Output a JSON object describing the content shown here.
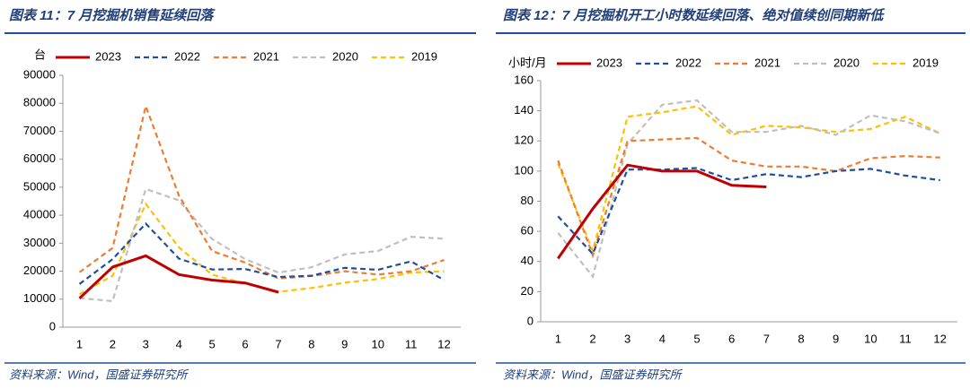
{
  "chart_data": [
    {
      "type": "line",
      "title": "图表 11：7 月挖掘机销售延续回落",
      "y_label": "台",
      "source": "资料来源：Wind，国盛证券研究所",
      "categories": [
        "1",
        "2",
        "3",
        "4",
        "5",
        "6",
        "7",
        "8",
        "9",
        "10",
        "11",
        "12"
      ],
      "ylim": [
        0,
        90000
      ],
      "yticks": [
        0,
        10000,
        20000,
        30000,
        40000,
        50000,
        60000,
        70000,
        80000,
        90000
      ],
      "series": [
        {
          "name": "2023",
          "color": "#c00000",
          "values": [
            10300,
            21500,
            25500,
            18800,
            16800,
            15800,
            12500,
            null,
            null,
            null,
            null,
            null
          ]
        },
        {
          "name": "2022",
          "color": "#1f4e9c",
          "values": [
            15400,
            24300,
            37000,
            24500,
            20600,
            20800,
            17900,
            18400,
            21200,
            20500,
            23500,
            16800
          ]
        },
        {
          "name": "2021",
          "color": "#ed7d31",
          "values": [
            19600,
            28300,
            79000,
            47000,
            27200,
            23100,
            17400,
            18300,
            20000,
            18800,
            20000,
            24000
          ]
        },
        {
          "name": "2020",
          "color": "#bfbfbf",
          "values": [
            10400,
            9300,
            49400,
            45300,
            31500,
            24300,
            19500,
            21400,
            26000,
            27200,
            32300,
            31600
          ]
        },
        {
          "name": "2019",
          "color": "#ffc000",
          "values": [
            11800,
            18400,
            44000,
            28500,
            18800,
            15600,
            12600,
            14000,
            15900,
            17200,
            19500,
            20000
          ]
        }
      ]
    },
    {
      "type": "line",
      "title": "图表 12：7 月挖掘机开工小时数延续回落、绝对值续创同期新低",
      "y_label": "小时/月",
      "source": "资料来源：Wind，国盛证券研究所",
      "categories": [
        "1",
        "2",
        "3",
        "4",
        "5",
        "6",
        "7",
        "8",
        "9",
        "10",
        "11",
        "12"
      ],
      "ylim": [
        0,
        160
      ],
      "yticks": [
        0,
        20,
        40,
        60,
        80,
        100,
        120,
        140,
        160
      ],
      "series": [
        {
          "name": "2023",
          "color": "#c00000",
          "values": [
            42,
            75,
            104,
            100,
            100,
            90.5,
            89.5,
            null,
            null,
            null,
            null,
            null
          ]
        },
        {
          "name": "2022",
          "color": "#1f4e9c",
          "values": [
            70,
            45,
            101,
            101,
            102,
            94,
            98,
            96,
            100,
            101.5,
            97,
            94
          ]
        },
        {
          "name": "2021",
          "color": "#ed7d31",
          "values": [
            107,
            44,
            120,
            121,
            122,
            107,
            103,
            103,
            100,
            108.5,
            110,
            109
          ]
        },
        {
          "name": "2020",
          "color": "#bfbfbf",
          "values": [
            59,
            30,
            118,
            144,
            147,
            126,
            126,
            130,
            124,
            137,
            133,
            125
          ]
        },
        {
          "name": "2019",
          "color": "#ffc000",
          "values": [
            105,
            47,
            136,
            139,
            143,
            124,
            130,
            129,
            126,
            128,
            136,
            125
          ]
        }
      ]
    }
  ]
}
